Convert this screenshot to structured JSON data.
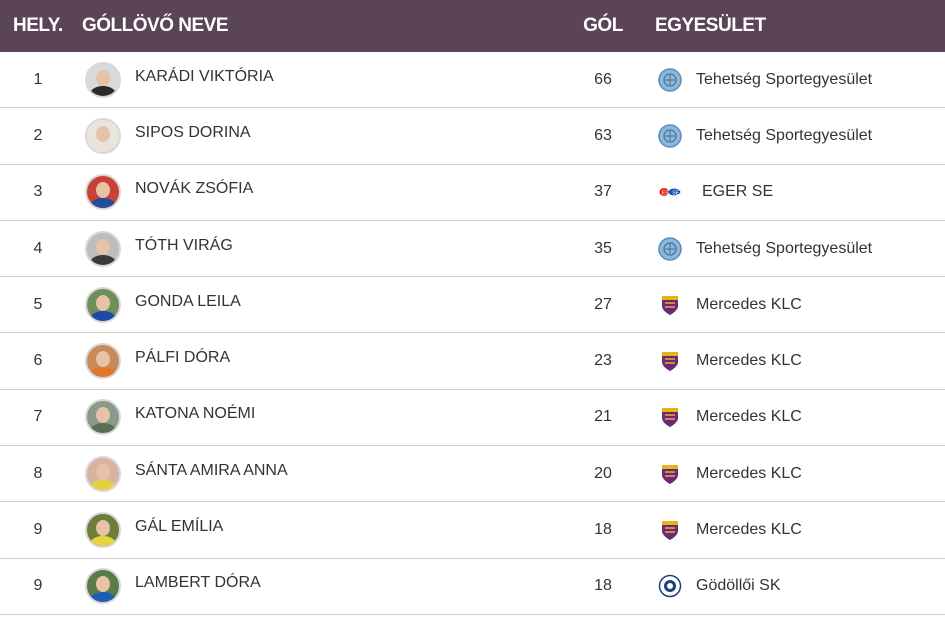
{
  "header": {
    "rank": "HELY.",
    "name": "GÓLLÖVŐ NEVE",
    "goals": "GÓL",
    "club": "EGYESÜLET"
  },
  "rows": [
    {
      "rank": "1",
      "name": "KARÁDI VIKTÓRIA",
      "goals": "66",
      "club": "Tehetség Sportegyesület",
      "logo": "tehetseg-logo",
      "shirt": "#2b2b2b",
      "bg": "#d9d9d9"
    },
    {
      "rank": "2",
      "name": "SIPOS DORINA",
      "goals": "63",
      "club": "Tehetség Sportegyesület",
      "logo": "tehetseg-logo",
      "shirt": "#e8e2da",
      "bg": "#e9e4de"
    },
    {
      "rank": "3",
      "name": "NOVÁK ZSÓFIA",
      "goals": "37",
      "club": "EGER SE",
      "logo": "eger-logo",
      "shirt": "#1f4e9b",
      "bg": "#c9423a"
    },
    {
      "rank": "4",
      "name": "TÓTH VIRÁG",
      "goals": "35",
      "club": "Tehetség Sportegyesület",
      "logo": "tehetseg-logo",
      "shirt": "#3a3a3a",
      "bg": "#bdbdbd"
    },
    {
      "rank": "5",
      "name": "GONDA LEILA",
      "goals": "27",
      "club": "Mercedes KLC",
      "logo": "klc-logo",
      "shirt": "#1d4aa8",
      "bg": "#6e8f5a"
    },
    {
      "rank": "6",
      "name": "PÁLFI DÓRA",
      "goals": "23",
      "club": "Mercedes KLC",
      "logo": "klc-logo",
      "shirt": "#e0772a",
      "bg": "#c98a5a"
    },
    {
      "rank": "7",
      "name": "KATONA NOÉMI",
      "goals": "21",
      "club": "Mercedes KLC",
      "logo": "klc-logo",
      "shirt": "#5a6e5a",
      "bg": "#8a9a8a"
    },
    {
      "rank": "8",
      "name": "SÁNTA AMIRA ANNA",
      "goals": "20",
      "club": "Mercedes KLC",
      "logo": "klc-logo",
      "shirt": "#e4d23a",
      "bg": "#d9b3a0"
    },
    {
      "rank": "9",
      "name": "GÁL EMÍLIA",
      "goals": "18",
      "club": "Mercedes KLC",
      "logo": "klc-logo",
      "shirt": "#e8d43a",
      "bg": "#6d7d3a"
    },
    {
      "rank": "9",
      "name": "LAMBERT DÓRA",
      "goals": "18",
      "club": "Gödöllői SK",
      "logo": "godollo-logo",
      "shirt": "#1d5fb8",
      "bg": "#5a7a4a"
    }
  ]
}
